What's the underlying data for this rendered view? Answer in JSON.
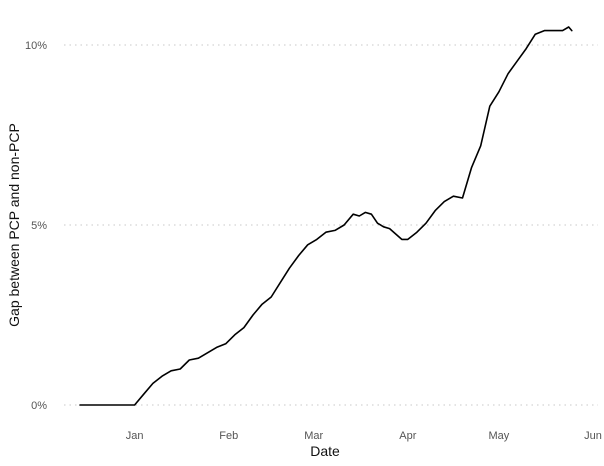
{
  "chart_data": {
    "type": "line",
    "title": "",
    "xlabel": "Date",
    "ylabel": "Gap between PCP and non-PCP",
    "x_ticks": [
      "Jan",
      "Feb",
      "Mar",
      "Apr",
      "May",
      "Jun"
    ],
    "x_tick_dates": [
      "2021-01-01",
      "2021-02-01",
      "2021-03-01",
      "2021-04-01",
      "2021-05-01",
      "2021-06-01"
    ],
    "y_ticks": [
      "0%",
      "5%",
      "10%"
    ],
    "y_tick_values": [
      0,
      5,
      10
    ],
    "xlim": [
      "2020-12-14",
      "2021-06-01"
    ],
    "ylim": [
      -0.5,
      10.9
    ],
    "grid": "horizontal dotted",
    "legend": "none",
    "line_color": "#000000",
    "series": [
      {
        "x": [
          "2020-12-14",
          "2020-12-20",
          "2020-12-27",
          "2021-01-01",
          "2021-01-04",
          "2021-01-07",
          "2021-01-10",
          "2021-01-13",
          "2021-01-16",
          "2021-01-19",
          "2021-01-22",
          "2021-01-25",
          "2021-01-28",
          "2021-01-31",
          "2021-02-03",
          "2021-02-06",
          "2021-02-09",
          "2021-02-12",
          "2021-02-15",
          "2021-02-18",
          "2021-02-21",
          "2021-02-24",
          "2021-02-27",
          "2021-03-02",
          "2021-03-05",
          "2021-03-08",
          "2021-03-11",
          "2021-03-14",
          "2021-03-16",
          "2021-03-18",
          "2021-03-20",
          "2021-03-22",
          "2021-03-24",
          "2021-03-26",
          "2021-03-28",
          "2021-03-30",
          "2021-04-01",
          "2021-04-04",
          "2021-04-07",
          "2021-04-10",
          "2021-04-13",
          "2021-04-16",
          "2021-04-19",
          "2021-04-22",
          "2021-04-25",
          "2021-04-28",
          "2021-05-01",
          "2021-05-04",
          "2021-05-07",
          "2021-05-10",
          "2021-05-13",
          "2021-05-16",
          "2021-05-19",
          "2021-05-22",
          "2021-05-24",
          "2021-05-25"
        ],
        "y": [
          0.0,
          0.0,
          0.0,
          0.0,
          0.3,
          0.6,
          0.8,
          0.95,
          1.0,
          1.25,
          1.3,
          1.45,
          1.6,
          1.7,
          1.95,
          2.15,
          2.5,
          2.8,
          3.0,
          3.4,
          3.8,
          4.15,
          4.45,
          4.6,
          4.8,
          4.85,
          5.0,
          5.3,
          5.25,
          5.35,
          5.3,
          5.05,
          4.95,
          4.9,
          4.75,
          4.6,
          4.6,
          4.8,
          5.05,
          5.4,
          5.65,
          5.8,
          5.75,
          6.6,
          7.2,
          8.3,
          8.7,
          9.2,
          9.55,
          9.9,
          10.3,
          10.4,
          10.4,
          10.4,
          10.5,
          10.4
        ]
      }
    ]
  }
}
